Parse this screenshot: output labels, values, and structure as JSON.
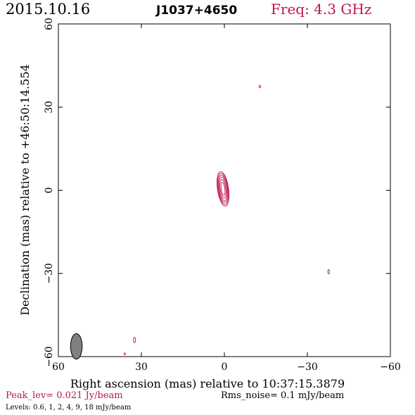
{
  "header": {
    "date": "2015.10.16",
    "source": "J1037+4650",
    "freq": "Freq: 4.3 GHz"
  },
  "footer": {
    "peak": "Peak_lev=  0.021 Jy/beam",
    "rms": "Rms_noise=   0.1 mJy/beam",
    "levels": "Levels: 0.6,    1,    2,    4,    9,   18 mJy/beam"
  },
  "colors": {
    "accent": "#c0144d",
    "axis": "#000000",
    "beam_fill": "#808080"
  },
  "chart_data": {
    "type": "contour",
    "xlabel": "Right ascension (mas) relative to 10:37:15.3879",
    "ylabel": "Declination (mas) relative to +46:50:14.554",
    "xlim": [
      60,
      -60
    ],
    "ylim": [
      -60,
      60
    ],
    "xticks": [
      60,
      30,
      0,
      -30,
      -60
    ],
    "yticks": [
      -60,
      -30,
      0,
      30,
      60
    ],
    "xtick_labels": [
      "60",
      "30",
      "0",
      "−30",
      "−60"
    ],
    "ytick_labels": [
      "−60",
      "−30",
      "0",
      "30",
      "60"
    ],
    "contour_levels_mJy": [
      0.6,
      1,
      2,
      4,
      9,
      18
    ],
    "components": [
      {
        "name": "core",
        "x": 0.5,
        "y": 0.5,
        "contours": [
          {
            "a": 2.0,
            "b": 6.3
          },
          {
            "a": 1.8,
            "b": 5.7
          },
          {
            "a": 1.6,
            "b": 5.0
          },
          {
            "a": 1.3,
            "b": 4.3
          },
          {
            "a": 1.0,
            "b": 3.4
          },
          {
            "a": 0.65,
            "b": 2.4
          }
        ],
        "angle": -8
      },
      {
        "name": "blob-top",
        "x": -12.8,
        "y": 37.4,
        "contours": [
          {
            "a": 0.3,
            "b": 0.45
          }
        ],
        "angle": 0
      },
      {
        "name": "blob-right",
        "x": -37.7,
        "y": -29.4,
        "contours": [
          {
            "a": 0.3,
            "b": 0.8
          }
        ],
        "angle": 0
      },
      {
        "name": "blob-bottom-left",
        "x": 32.5,
        "y": -54.0,
        "contours": [
          {
            "a": 0.35,
            "b": 1.0
          }
        ],
        "angle": 0
      },
      {
        "name": "blob-bottom-tiny",
        "x": 36.0,
        "y": -59.0,
        "contours": [
          {
            "a": 0.25,
            "b": 0.35
          }
        ],
        "angle": 0
      }
    ],
    "beam": {
      "x": 53.5,
      "y": -56.3,
      "major": 4.6,
      "minor": 2.1,
      "pa": 0
    }
  }
}
